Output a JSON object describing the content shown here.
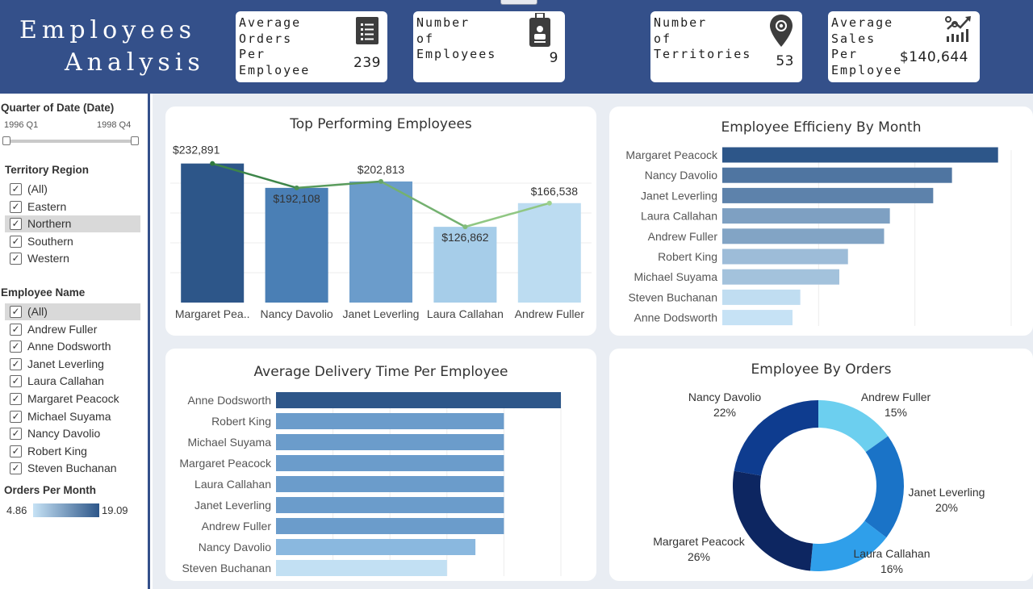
{
  "header": {
    "title_line1": "Employees",
    "title_line2": "Analysis",
    "kpis": [
      {
        "label": "Average\nOrders\nPer\nEmployee",
        "value": "239",
        "icon": "list-document-icon"
      },
      {
        "label": "Number\nof\nEmployees",
        "value": "9",
        "icon": "id-badge-icon"
      },
      {
        "label": "Number\nof\nTerritories",
        "value": "53",
        "icon": "map-pin-icon"
      },
      {
        "label": "Average\nSales\nPer\nEmployee",
        "value": "$140,644",
        "icon": "growth-chart-icon"
      }
    ]
  },
  "sidebar": {
    "date_filter": {
      "label": "Quarter of Date (Date)",
      "start": "1996 Q1",
      "end": "1998 Q4"
    },
    "region_filter": {
      "label": "Territory Region",
      "items": [
        {
          "label": "(All)",
          "checked": true,
          "selected": false
        },
        {
          "label": "Eastern",
          "checked": true,
          "selected": false
        },
        {
          "label": "Northern",
          "checked": true,
          "selected": true
        },
        {
          "label": "Southern",
          "checked": true,
          "selected": false
        },
        {
          "label": "Western",
          "checked": true,
          "selected": false
        }
      ]
    },
    "employee_filter": {
      "label": "Employee Name",
      "items": [
        {
          "label": "(All)",
          "checked": true,
          "selected": true
        },
        {
          "label": "Andrew Fuller",
          "checked": true,
          "selected": false
        },
        {
          "label": "Anne Dodsworth",
          "checked": true,
          "selected": false
        },
        {
          "label": "Janet Leverling",
          "checked": true,
          "selected": false
        },
        {
          "label": "Laura Callahan",
          "checked": true,
          "selected": false
        },
        {
          "label": "Margaret Peacock",
          "checked": true,
          "selected": false
        },
        {
          "label": "Michael Suyama",
          "checked": true,
          "selected": false
        },
        {
          "label": "Nancy Davolio",
          "checked": true,
          "selected": false
        },
        {
          "label": "Robert King",
          "checked": true,
          "selected": false
        },
        {
          "label": "Steven Buchanan",
          "checked": true,
          "selected": false
        }
      ]
    },
    "color_legend": {
      "label": "Orders Per Month",
      "min": "4.86",
      "max": "19.09"
    }
  },
  "colors": {
    "header_bg": "#34508a",
    "dark_blue": "#2d5689",
    "light_blue": "#c6e2f5",
    "line_green": "#5f9e5f",
    "donut": [
      "#6ccfef",
      "#1a73c7",
      "#2f9fea",
      "#0d2661",
      "#0e3c8f"
    ]
  },
  "chart_data": [
    {
      "id": "top-performing",
      "title": "Top Performing Employees",
      "type": "bar",
      "categories": [
        "Margaret Pea..",
        "Nancy Davolio",
        "Janet Leverling",
        "Laura Callahan",
        "Andrew Fuller"
      ],
      "values": [
        232891,
        192108,
        202813,
        126862,
        166538
      ],
      "line_values": [
        232891,
        192108,
        202813,
        126862,
        166538
      ],
      "labels": [
        "$232,891",
        "$192,108",
        "$202,813",
        "$126,862",
        "$166,538"
      ],
      "bar_colors": [
        "#2d5689",
        "#4a7fb5",
        "#6b9ccb",
        "#a6cde9",
        "#bcdcf1"
      ],
      "ylim": [
        0,
        250000
      ],
      "grid": true
    },
    {
      "id": "efficiency",
      "title": "Employee Efficieny By Month",
      "type": "bar",
      "orientation": "horizontal",
      "categories": [
        "Margaret Peacock",
        "Nancy Davolio",
        "Janet Leverling",
        "Laura Callahan",
        "Andrew Fuller",
        "Robert King",
        "Michael Suyama",
        "Steven Buchanan",
        "Anne Dodsworth"
      ],
      "values": [
        19.09,
        15.9,
        14.6,
        11.6,
        11.2,
        8.7,
        8.1,
        5.4,
        4.86
      ],
      "xlim": [
        0,
        20
      ],
      "grid": true
    },
    {
      "id": "delivery",
      "title": "Average Delivery Time Per Employee",
      "type": "bar",
      "orientation": "horizontal",
      "categories": [
        "Anne Dodsworth",
        "Robert King",
        "Michael Suyama",
        "Margaret Peacock",
        "Laura Callahan",
        "Janet Leverling",
        "Andrew Fuller",
        "Nancy Davolio",
        "Steven Buchanan"
      ],
      "values": [
        10.0,
        8.0,
        8.0,
        8.0,
        8.0,
        8.0,
        8.0,
        7.0,
        6.0
      ],
      "bar_colors": [
        "#2d5689",
        "#6b9ccb",
        "#6b9ccb",
        "#6b9ccb",
        "#6b9ccb",
        "#6b9ccb",
        "#6b9ccb",
        "#8ab8df",
        "#c2e0f3"
      ],
      "xlim": [
        0,
        10
      ],
      "grid": true
    },
    {
      "id": "orders",
      "title": "Employee By Orders",
      "type": "pie",
      "categories": [
        "Andrew Fuller",
        "Janet Leverling",
        "Laura Callahan",
        "Margaret Peacock",
        "Nancy Davolio"
      ],
      "values": [
        15,
        20,
        16,
        26,
        22
      ],
      "labels": [
        "15%",
        "20%",
        "16%",
        "26%",
        "22%"
      ]
    }
  ]
}
